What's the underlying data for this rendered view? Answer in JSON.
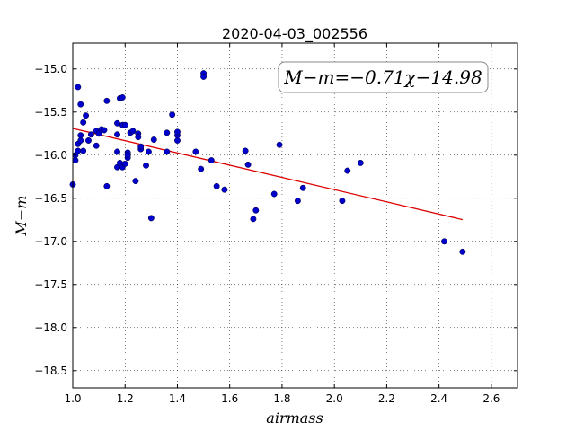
{
  "chart_data": {
    "type": "scatter",
    "title": "2020-04-03_002556",
    "xlabel": "airmass",
    "ylabel": "M−m",
    "annotation": "M−m=−0.71χ−14.98",
    "xlim": [
      1.0,
      2.7
    ],
    "ylim": [
      -18.7,
      -14.7
    ],
    "y_inverted": true,
    "grid": true,
    "xticks": [
      1.0,
      1.2,
      1.4,
      1.6,
      1.8,
      2.0,
      2.2,
      2.4,
      2.6
    ],
    "xtick_labels": [
      "1.0",
      "1.2",
      "1.4",
      "1.6",
      "1.8",
      "2.0",
      "2.2",
      "2.4",
      "2.6"
    ],
    "yticks": [
      -18.5,
      -18.0,
      -17.5,
      -17.0,
      -16.5,
      -16.0,
      -15.5,
      -15.0
    ],
    "ytick_labels": [
      "−18.5",
      "−18.0",
      "−17.5",
      "−17.0",
      "−16.5",
      "−16.0",
      "−15.5",
      "−15.0"
    ],
    "colors": {
      "points": "#0000cc",
      "fit": "#dd0000"
    },
    "fit": {
      "slope": -0.71,
      "intercept": -14.98,
      "x_range": [
        1.0,
        2.49
      ]
    },
    "points": [
      [
        1.0,
        -16.34
      ],
      [
        1.01,
        -16.06
      ],
      [
        1.01,
        -16.0
      ],
      [
        1.02,
        -15.95
      ],
      [
        1.02,
        -15.87
      ],
      [
        1.02,
        -15.21
      ],
      [
        1.03,
        -15.83
      ],
      [
        1.03,
        -15.77
      ],
      [
        1.03,
        -15.41
      ],
      [
        1.04,
        -15.95
      ],
      [
        1.04,
        -15.62
      ],
      [
        1.05,
        -15.54
      ],
      [
        1.06,
        -15.83
      ],
      [
        1.07,
        -15.76
      ],
      [
        1.09,
        -15.72
      ],
      [
        1.09,
        -15.89
      ],
      [
        1.1,
        -15.75
      ],
      [
        1.11,
        -15.7
      ],
      [
        1.12,
        -15.71
      ],
      [
        1.13,
        -16.36
      ],
      [
        1.13,
        -15.37
      ],
      [
        1.17,
        -15.63
      ],
      [
        1.17,
        -15.76
      ],
      [
        1.17,
        -15.96
      ],
      [
        1.17,
        -16.14
      ],
      [
        1.18,
        -15.34
      ],
      [
        1.18,
        -16.09
      ],
      [
        1.19,
        -15.33
      ],
      [
        1.19,
        -16.14
      ],
      [
        1.19,
        -15.65
      ],
      [
        1.2,
        -16.1
      ],
      [
        1.2,
        -15.65
      ],
      [
        1.21,
        -16.03
      ],
      [
        1.21,
        -15.97
      ],
      [
        1.21,
        -16.0
      ],
      [
        1.22,
        -15.74
      ],
      [
        1.23,
        -15.72
      ],
      [
        1.24,
        -16.3
      ],
      [
        1.25,
        -15.75
      ],
      [
        1.25,
        -15.79
      ],
      [
        1.26,
        -15.93
      ],
      [
        1.26,
        -15.9
      ],
      [
        1.28,
        -16.12
      ],
      [
        1.29,
        -15.96
      ],
      [
        1.3,
        -16.73
      ],
      [
        1.31,
        -15.82
      ],
      [
        1.36,
        -15.96
      ],
      [
        1.36,
        -15.74
      ],
      [
        1.38,
        -15.53
      ],
      [
        1.4,
        -15.83
      ],
      [
        1.4,
        -15.77
      ],
      [
        1.4,
        -15.73
      ],
      [
        1.47,
        -15.96
      ],
      [
        1.49,
        -16.16
      ],
      [
        1.5,
        -15.05
      ],
      [
        1.5,
        -15.09
      ],
      [
        1.53,
        -16.06
      ],
      [
        1.55,
        -16.36
      ],
      [
        1.58,
        -16.4
      ],
      [
        1.66,
        -15.95
      ],
      [
        1.67,
        -16.11
      ],
      [
        1.69,
        -16.74
      ],
      [
        1.7,
        -16.64
      ],
      [
        1.77,
        -16.45
      ],
      [
        1.79,
        -15.88
      ],
      [
        1.86,
        -16.53
      ],
      [
        1.88,
        -16.38
      ],
      [
        2.03,
        -16.53
      ],
      [
        2.05,
        -16.18
      ],
      [
        2.1,
        -16.09
      ],
      [
        2.42,
        -17.0
      ],
      [
        2.49,
        -17.12
      ]
    ]
  }
}
